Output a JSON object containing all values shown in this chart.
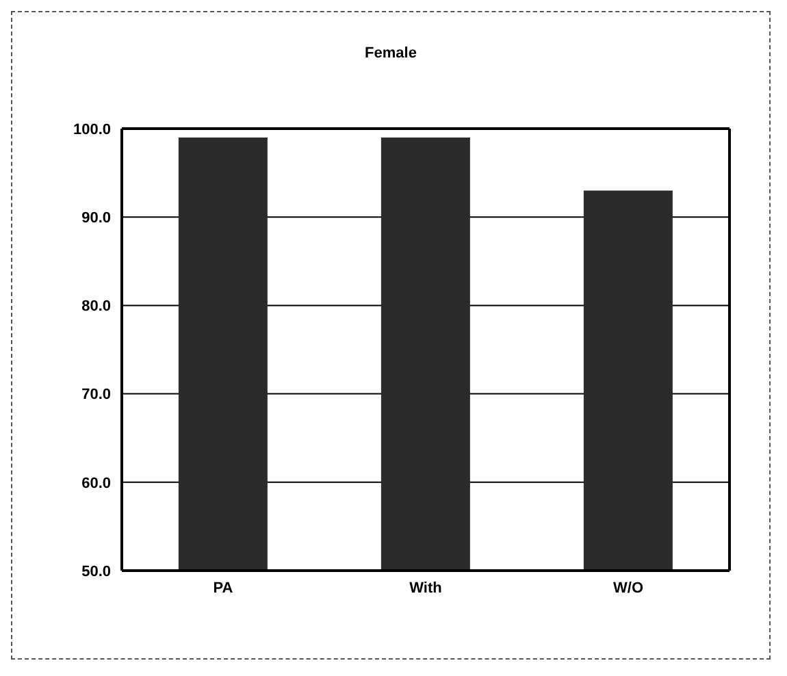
{
  "chart_data": {
    "type": "bar",
    "title": "Female",
    "categories": [
      "PA",
      "With",
      "W/O"
    ],
    "values": [
      99.0,
      99.0,
      93.0
    ],
    "color": "#2b2b2b",
    "ylim": [
      50,
      100
    ],
    "yticks": [
      {
        "value": 50,
        "label": "50.0"
      },
      {
        "value": 60,
        "label": "60.0"
      },
      {
        "value": 70,
        "label": "70.0"
      },
      {
        "value": 80,
        "label": "80.0"
      },
      {
        "value": 90,
        "label": "90.0"
      },
      {
        "value": 100,
        "label": "100.0"
      }
    ],
    "grid": "y"
  }
}
